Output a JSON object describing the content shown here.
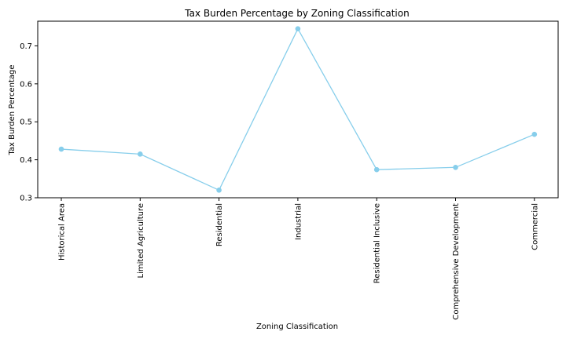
{
  "chart_data": {
    "type": "line",
    "title": "Tax Burden Percentage by Zoning Classification",
    "xlabel": "Zoning Classification",
    "ylabel": "Tax Burden Percentage",
    "categories": [
      "Historical Area",
      "Limited Agriculture",
      "Residential",
      "Industrial",
      "Residential Inclusive",
      "Comprehensive Development",
      "Commercial"
    ],
    "series": [
      {
        "values": [
          0.428,
          0.415,
          0.32,
          0.745,
          0.374,
          0.38,
          0.467
        ],
        "color": "#87CEEB"
      }
    ],
    "ylim": [
      0.3,
      0.765
    ],
    "yticks": [
      0.3,
      0.4,
      0.5,
      0.6,
      0.7
    ],
    "ytick_labels": [
      "0.3",
      "0.4",
      "0.5",
      "0.6",
      "0.7"
    ],
    "grid": false,
    "legend": false
  }
}
